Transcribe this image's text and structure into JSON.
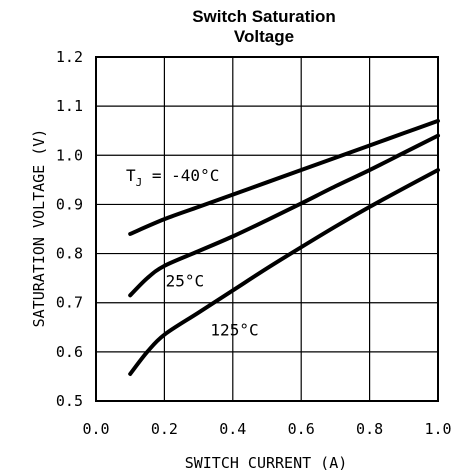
{
  "chart_data": {
    "type": "line",
    "title": [
      "Switch Saturation",
      "Voltage"
    ],
    "xlabel": "SWITCH CURRENT (A)",
    "ylabel": "SATURATION VOLTAGE (V)",
    "xlim": [
      0.0,
      1.0
    ],
    "ylim": [
      0.5,
      1.2
    ],
    "xticks": [
      "0.0",
      "0.2",
      "0.4",
      "0.6",
      "0.8",
      "1.0"
    ],
    "yticks": [
      "0.5",
      "0.6",
      "0.7",
      "0.8",
      "0.9",
      "1.0",
      "1.1",
      "1.2"
    ],
    "grid": true,
    "series": [
      {
        "name": "TJ = -40°C",
        "label_main": "T",
        "label_sub": "J",
        "label_rest": " = -40°C",
        "x": [
          0.1,
          0.2,
          0.3,
          0.4,
          0.5,
          0.6,
          0.7,
          0.8,
          0.9,
          1.0
        ],
        "y": [
          0.84,
          0.87,
          0.895,
          0.92,
          0.945,
          0.97,
          0.995,
          1.02,
          1.045,
          1.07
        ]
      },
      {
        "name": "25°C",
        "label": "25°C",
        "x": [
          0.1,
          0.15,
          0.2,
          0.3,
          0.4,
          0.5,
          0.6,
          0.7,
          0.8,
          0.9,
          1.0
        ],
        "y": [
          0.715,
          0.75,
          0.775,
          0.805,
          0.835,
          0.868,
          0.902,
          0.937,
          0.97,
          1.005,
          1.04
        ],
        "label_pos": [
          0.26,
          0.745
        ]
      },
      {
        "name": "125°C",
        "label": "125°C",
        "x": [
          0.1,
          0.15,
          0.2,
          0.3,
          0.4,
          0.5,
          0.6,
          0.7,
          0.8,
          0.9,
          1.0
        ],
        "y": [
          0.555,
          0.6,
          0.635,
          0.68,
          0.725,
          0.77,
          0.813,
          0.855,
          0.895,
          0.933,
          0.97
        ],
        "label_pos": [
          0.405,
          0.645
        ]
      }
    ]
  }
}
